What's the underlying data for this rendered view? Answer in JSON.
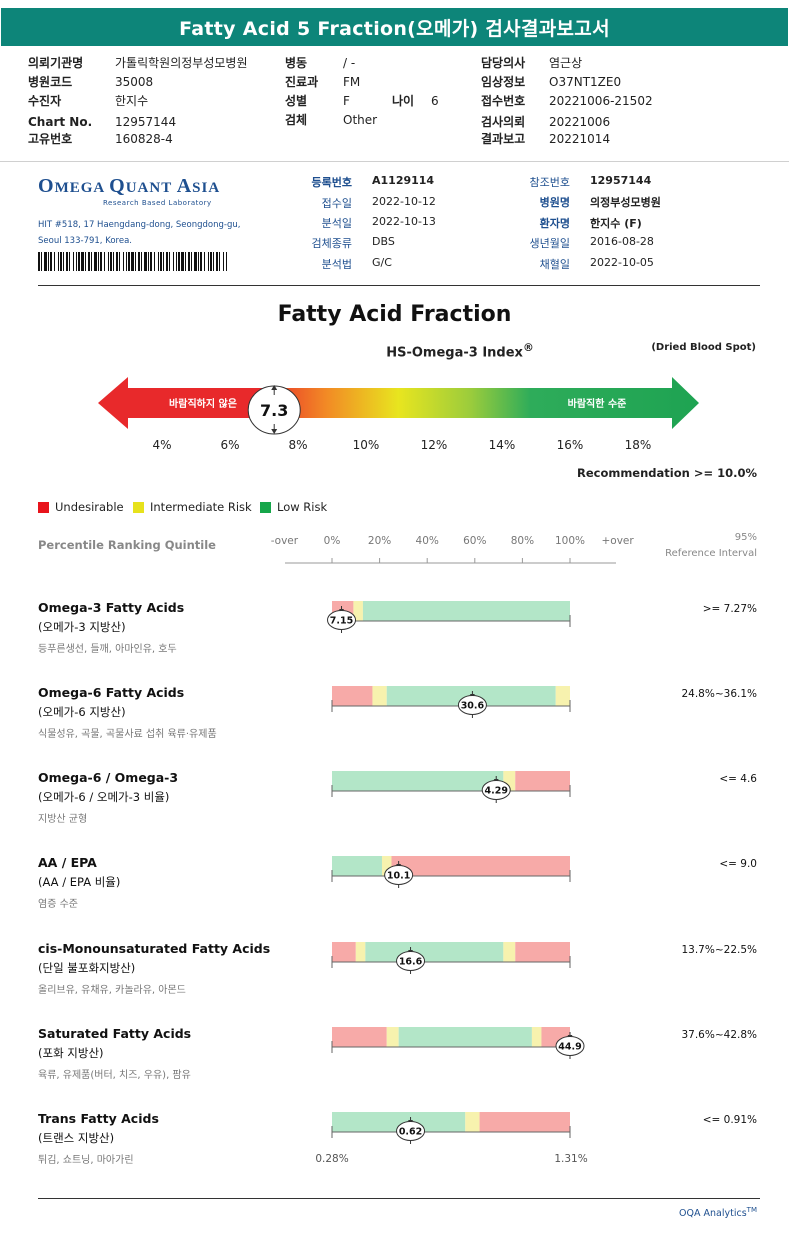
{
  "report": {
    "title": "Fatty Acid 5 Fraction(오메가) 검사결과보고서",
    "header": {
      "institution_label": "의뢰기관명",
      "institution": "가톨릭학원의정부성모병원",
      "hospital_code_label": "병원코드",
      "hospital_code": "35008",
      "patient_label": "수진자",
      "patient": "한지수",
      "chart_label": "Chart No.",
      "chart": "12957144",
      "unique_label": "고유번호",
      "unique": "160828-4",
      "ward_label": "병동",
      "ward": "/ -",
      "dept_label": "진료과",
      "dept": "FM",
      "sex_label": "성별",
      "sex": "F",
      "age_label": "나이",
      "age": "6",
      "specimen_label": "검체",
      "specimen": "Other",
      "doctor_label": "담당의사",
      "doctor": "염근상",
      "clinical_label": "임상정보",
      "clinical": "O37NT1ZE0",
      "receipt_label": "접수번호",
      "receipt": "20221006-21502",
      "request_label": "검사의뢰",
      "request": "20221006",
      "result_label": "결과보고",
      "result": "20221014"
    }
  },
  "lab": {
    "logo_line1_a": "O",
    "logo_line1_b": "MEGA ",
    "logo_line1_c": "Q",
    "logo_line1_d": "UANT ",
    "logo_line1_e": "A",
    "logo_line1_f": "SIA",
    "logo_sub": "Research Based Laboratory",
    "address_1": "HIT #518, 17 Haengdang-dong, Seongdong-gu,",
    "address_2": "Seoul 133-791, Korea.",
    "reg_no_label": "등록번호",
    "reg_no": "A1129114",
    "received_label": "접수일",
    "received": "2022-10-12",
    "analyzed_label": "분석일",
    "analyzed": "2022-10-13",
    "specimen_type_label": "검체종류",
    "specimen_type": "DBS",
    "method_label": "분석법",
    "method": "G/C",
    "ref_no_label": "참조번호",
    "ref_no": "12957144",
    "hospital_label": "병원명",
    "hospital": "의정부성모병원",
    "patient_label": "환자명",
    "patient": "한지수 (F)",
    "dob_label": "생년월일",
    "dob": "2016-08-28",
    "collected_label": "채혈일",
    "collected": "2022-10-05"
  },
  "index_section": {
    "title": "Fatty Acid Fraction",
    "subtitle": "HS-Omega-3 Index",
    "subtitle_mark": "®",
    "specimen_note": "(Dried Blood Spot)",
    "low_label": "바람직하지 않은",
    "high_label": "바람직한 수준",
    "value": "7.3",
    "value_num": 7.3,
    "scale_min": 3,
    "scale_max": 19,
    "ticks": [
      "4%",
      "6%",
      "8%",
      "10%",
      "12%",
      "14%",
      "16%",
      "18%"
    ],
    "tick_values": [
      4,
      6,
      8,
      10,
      12,
      14,
      16,
      18
    ],
    "recommendation": "Recommendation  >= 10.0%"
  },
  "legend": [
    {
      "label": "Undesirable",
      "color": "#e8141c"
    },
    {
      "label": "Intermediate Risk",
      "color": "#e7e21c"
    },
    {
      "label": "Low Risk",
      "color": "#16a64a"
    }
  ],
  "percentile": {
    "title": "Percentile Ranking Quintile",
    "labels": [
      "-over",
      "0%",
      "20%",
      "40%",
      "60%",
      "80%",
      "100%",
      "+over"
    ],
    "label_positions": [
      -0.2,
      0,
      0.2,
      0.4,
      0.6,
      0.8,
      1.0,
      1.2
    ],
    "ref_header_1": "95%",
    "ref_header_2": "Reference Interval"
  },
  "colors": {
    "red_zone": "#f7aaa8",
    "yellow_zone": "#f7f2ae",
    "green_zone": "#b3e6c8"
  },
  "rows": [
    {
      "name": "Omega-3 Fatty Acids",
      "kor": "(오메가-3 지방산)",
      "desc": "등푸른생선, 들깨, 아마인유, 호두",
      "ref": ">= 7.27%",
      "value": "7.15",
      "marker": 0.04,
      "segments": [
        {
          "z": "red",
          "a": 0,
          "b": 0.09
        },
        {
          "z": "yellow",
          "a": 0.09,
          "b": 0.13
        },
        {
          "z": "green",
          "a": 0.13,
          "b": 1.0
        }
      ]
    },
    {
      "name": "Omega-6 Fatty Acids",
      "kor": "(오메가-6 지방산)",
      "desc": "식물성유, 곡물, 곡물사료 섭취 육류·유제품",
      "ref": "24.8%~36.1%",
      "value": "30.6",
      "marker": 0.59,
      "segments": [
        {
          "z": "red",
          "a": 0,
          "b": 0.17
        },
        {
          "z": "yellow",
          "a": 0.17,
          "b": 0.23
        },
        {
          "z": "green",
          "a": 0.23,
          "b": 0.94
        },
        {
          "z": "yellow",
          "a": 0.94,
          "b": 1.0
        }
      ]
    },
    {
      "name": "Omega-6 / Omega-3",
      "kor": "(오메가-6 / 오메가-3 비율)",
      "desc": "지방산 균형",
      "ref": "<= 4.6",
      "value": "4.29",
      "marker": 0.69,
      "segments": [
        {
          "z": "green",
          "a": 0,
          "b": 0.72
        },
        {
          "z": "yellow",
          "a": 0.72,
          "b": 0.77
        },
        {
          "z": "red",
          "a": 0.77,
          "b": 1.0
        }
      ]
    },
    {
      "name": "AA / EPA",
      "kor": "(AA / EPA 비율)",
      "desc": "염증 수준",
      "ref": "<= 9.0",
      "value": "10.1",
      "marker": 0.28,
      "segments": [
        {
          "z": "green",
          "a": 0,
          "b": 0.21
        },
        {
          "z": "yellow",
          "a": 0.21,
          "b": 0.25
        },
        {
          "z": "red",
          "a": 0.25,
          "b": 1.0
        }
      ]
    },
    {
      "name": "cis-Monounsaturated Fatty Acids",
      "kor": "(단일 불포화지방산)",
      "desc": "올리브유, 유채유, 카놀라유, 아몬드",
      "ref": "13.7%~22.5%",
      "value": "16.6",
      "marker": 0.33,
      "segments": [
        {
          "z": "red",
          "a": 0,
          "b": 0.1
        },
        {
          "z": "yellow",
          "a": 0.1,
          "b": 0.14
        },
        {
          "z": "green",
          "a": 0.14,
          "b": 0.72
        },
        {
          "z": "yellow",
          "a": 0.72,
          "b": 0.77
        },
        {
          "z": "red",
          "a": 0.77,
          "b": 1.0
        }
      ]
    },
    {
      "name": "Saturated Fatty Acids",
      "kor": "(포화 지방산)",
      "desc": "육류, 유제품(버터, 치즈, 우유), 팜유",
      "ref": "37.6%~42.8%",
      "value": "44.9",
      "marker": 1.0,
      "segments": [
        {
          "z": "red",
          "a": 0,
          "b": 0.23
        },
        {
          "z": "yellow",
          "a": 0.23,
          "b": 0.28
        },
        {
          "z": "green",
          "a": 0.28,
          "b": 0.84
        },
        {
          "z": "yellow",
          "a": 0.84,
          "b": 0.88
        },
        {
          "z": "red",
          "a": 0.88,
          "b": 1.0
        }
      ]
    },
    {
      "name": "Trans Fatty Acids",
      "kor": "(트랜스 지방산)",
      "desc": "튀김, 쇼트닝, 마아가린",
      "ref": "<= 0.91%",
      "value": "0.62",
      "marker": 0.33,
      "segments": [
        {
          "z": "green",
          "a": 0,
          "b": 0.56
        },
        {
          "z": "yellow",
          "a": 0.56,
          "b": 0.62
        },
        {
          "z": "red",
          "a": 0.62,
          "b": 1.0
        }
      ]
    }
  ],
  "trans_scale": {
    "min_label": "0.28%",
    "max_label": "1.31%"
  },
  "footer": {
    "text": "OQA Analytics",
    "mark": "TM"
  }
}
